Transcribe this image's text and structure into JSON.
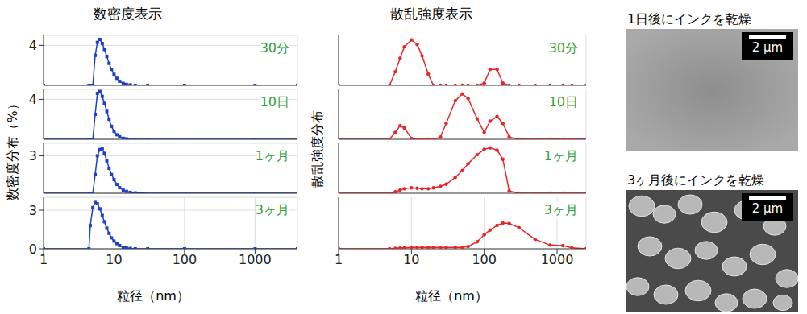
{
  "chart_data": [
    {
      "type": "line",
      "title": "数密度表示",
      "ylabel": "数密度分布（%）",
      "xlabel": "粒径（nm）",
      "log": "x",
      "grid": true,
      "marker": "square",
      "line_style": "solid",
      "color": "#1f3fc8",
      "tick_labels": true,
      "xlim": [
        1,
        4000
      ],
      "xticks": [
        1,
        10,
        100,
        1000
      ],
      "x": [
        1,
        4.4,
        4.6,
        5.0,
        5.4,
        5.8,
        6.3,
        6.8,
        7.3,
        7.9,
        8.5,
        9.2,
        10,
        11,
        12,
        13.5,
        15,
        17,
        20,
        30,
        100,
        1000,
        4000
      ],
      "series": [
        {
          "name": "30分",
          "ylim": [
            0,
            5
          ],
          "yticks": [
            0,
            4
          ],
          "values": [
            0,
            0,
            0,
            0,
            3.0,
            4.3,
            4.6,
            4.2,
            3.6,
            2.9,
            2.2,
            1.6,
            1.1,
            0.7,
            0.4,
            0.2,
            0.1,
            0.05,
            0,
            0,
            0,
            0,
            0
          ]
        },
        {
          "name": "10日",
          "ylim": [
            0,
            5
          ],
          "yticks": [
            0,
            4
          ],
          "values": [
            0,
            0,
            0,
            0,
            2.5,
            4.6,
            4.8,
            4.3,
            3.6,
            2.8,
            2.0,
            1.3,
            0.8,
            0.45,
            0.25,
            0.1,
            0.05,
            0,
            0,
            0,
            0,
            0,
            0
          ]
        },
        {
          "name": "1ヶ月",
          "ylim": [
            0,
            4
          ],
          "yticks": [
            0,
            3
          ],
          "values": [
            0,
            0,
            0,
            0,
            1.5,
            3.0,
            3.5,
            3.6,
            3.2,
            2.6,
            2.0,
            1.5,
            1.1,
            0.7,
            0.45,
            0.25,
            0.15,
            0.07,
            0.03,
            0,
            0,
            0,
            0
          ]
        },
        {
          "name": "3ヶ月",
          "ylim": [
            0,
            4
          ],
          "yticks": [
            0,
            3
          ],
          "values": [
            0,
            0,
            1.8,
            3.2,
            3.6,
            3.5,
            3.1,
            2.6,
            2.1,
            1.6,
            1.2,
            0.85,
            0.6,
            0.4,
            0.25,
            0.12,
            0.06,
            0.03,
            0,
            0,
            0,
            0,
            0
          ]
        }
      ]
    },
    {
      "type": "line",
      "title": "散乱強度表示",
      "ylabel": "散乱強度分布",
      "xlabel": "粒径（nm）",
      "log": "x",
      "grid": true,
      "marker": "circle",
      "line_style": "solid",
      "color": "#e8262a",
      "tick_labels": "x",
      "xlim": [
        1,
        2500
      ],
      "xticks": [
        1,
        10,
        100,
        1000
      ],
      "x": [
        1,
        5,
        6,
        7,
        8,
        10,
        12,
        14,
        17,
        20,
        25,
        30,
        40,
        50,
        60,
        80,
        100,
        120,
        150,
        180,
        220,
        300,
        500,
        800,
        1200,
        1600,
        2500
      ],
      "series": [
        {
          "name": "30分",
          "ylim": [
            0,
            1.1
          ],
          "values": [
            0,
            0,
            0.3,
            0.6,
            0.85,
            1.0,
            0.9,
            0.65,
            0.25,
            0,
            0,
            0,
            0,
            0,
            0,
            0,
            0.05,
            0.35,
            0.35,
            0.05,
            0,
            0,
            0,
            0,
            0,
            0,
            0
          ]
        },
        {
          "name": "10日",
          "ylim": [
            0,
            1.1
          ],
          "values": [
            0,
            0,
            0.15,
            0.3,
            0.25,
            0.02,
            0,
            0,
            0,
            0,
            0.05,
            0.35,
            0.85,
            1.0,
            0.9,
            0.45,
            0.15,
            0.4,
            0.5,
            0.35,
            0.05,
            0,
            0,
            0,
            0,
            0,
            0
          ]
        },
        {
          "name": "1ヶ月",
          "ylim": [
            0,
            1.1
          ],
          "values": [
            0,
            0,
            0.03,
            0.07,
            0.1,
            0.12,
            0.11,
            0.1,
            0.1,
            0.12,
            0.15,
            0.2,
            0.35,
            0.5,
            0.65,
            0.85,
            0.97,
            1.0,
            0.95,
            0.75,
            0.05,
            0,
            0,
            0,
            0,
            0,
            0
          ]
        },
        {
          "name": "3ヶ月",
          "ylim": [
            0,
            1.1
          ],
          "values": [
            0,
            0,
            0.01,
            0.02,
            0.02,
            0.03,
            0.03,
            0.03,
            0.03,
            0.03,
            0.03,
            0.03,
            0.03,
            0.03,
            0.05,
            0.15,
            0.3,
            0.4,
            0.5,
            0.55,
            0.54,
            0.45,
            0.2,
            0.08,
            0.07,
            0.02,
            0
          ]
        }
      ]
    }
  ],
  "images": [
    {
      "caption": "1日後にインクを乾燥",
      "scale_bar": "2 µm"
    },
    {
      "caption": "3ヶ月後にインクを乾燥",
      "scale_bar": "2 µm"
    }
  ]
}
